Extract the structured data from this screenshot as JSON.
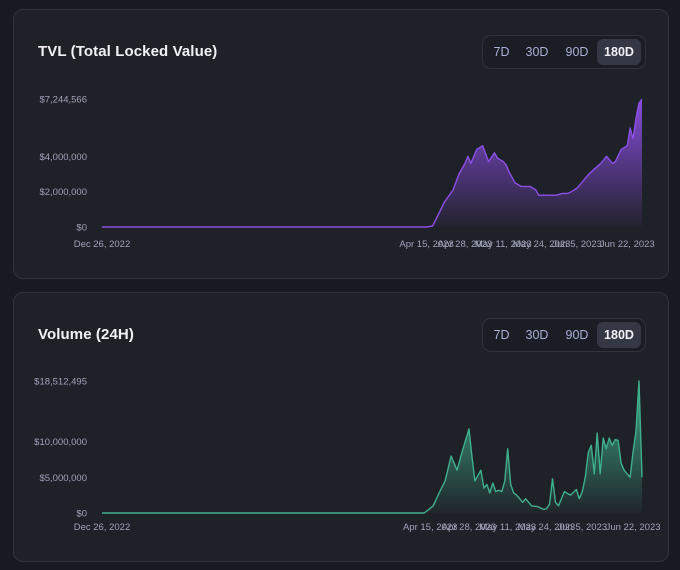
{
  "colors": {
    "tvl": "#8c4fe6",
    "volume": "#3fb08d",
    "active_range_bg": "#343744"
  },
  "chart_data": [
    {
      "id": "tvl",
      "type": "area",
      "title": "TVL (Total Locked Value)",
      "ranges": [
        "7D",
        "30D",
        "90D",
        "180D"
      ],
      "active_range": "180D",
      "ylim": [
        0,
        7244566
      ],
      "ytick_labels": [
        "$7,244,566",
        "$4,000,000",
        "$2,000,000",
        "$0"
      ],
      "ytick_values": [
        7244566,
        4000000,
        2000000,
        0
      ],
      "xtick_labels": [
        "Dec 26, 2022",
        "Apr 15, 2023",
        "Apr 28, 2023",
        "May 11, 2023",
        "May 24, 2023",
        "Jun 5, 2023",
        "Jun 22, 2023"
      ],
      "xtick_days": [
        0,
        110,
        123,
        136,
        149,
        161,
        178
      ],
      "x_days": [
        0,
        95,
        110,
        112,
        114,
        116,
        119,
        121,
        123,
        124,
        125,
        127,
        129,
        131,
        133,
        134,
        136,
        137,
        138,
        140,
        142,
        145,
        147,
        148,
        151,
        154,
        156,
        158,
        159,
        161,
        163,
        165,
        167,
        169,
        171,
        173,
        174,
        176,
        178,
        179,
        180,
        181,
        182,
        183
      ],
      "values": [
        0,
        0,
        0,
        50000,
        700000,
        1400000,
        2100000,
        3000000,
        3600000,
        4000000,
        3600000,
        4400000,
        4600000,
        3700000,
        4200000,
        3900000,
        3700000,
        3500000,
        3100000,
        2500000,
        2300000,
        2300000,
        2100000,
        1800000,
        1800000,
        1800000,
        1900000,
        1900000,
        2000000,
        2200000,
        2600000,
        3000000,
        3300000,
        3600000,
        4000000,
        3600000,
        3700000,
        4400000,
        4600000,
        5600000,
        5000000,
        6200000,
        7000000,
        7244566
      ]
    },
    {
      "id": "volume",
      "type": "area",
      "title": "Volume (24H)",
      "ranges": [
        "7D",
        "30D",
        "90D",
        "180D"
      ],
      "active_range": "180D",
      "ylim": [
        0,
        18512495
      ],
      "ytick_labels": [
        "$18,512,495",
        "$10,000,000",
        "$5,000,000",
        "$0"
      ],
      "ytick_values": [
        18512495,
        10000000,
        5000000,
        0
      ],
      "xtick_labels": [
        "Dec 26, 2022",
        "Apr 15, 2023",
        "Apr 28, 2023",
        "May 11, 2023",
        "May 24, 2023",
        "Jun 5, 2023",
        "Jun 22, 2023"
      ],
      "xtick_days": [
        0,
        110,
        123,
        136,
        149,
        161,
        178
      ],
      "x_days": [
        0,
        100,
        108,
        111,
        113,
        115,
        117,
        119,
        121,
        123,
        124,
        125,
        127,
        128,
        129,
        130,
        131,
        132,
        133,
        134,
        135,
        136,
        137,
        138,
        139,
        141,
        142,
        144,
        146,
        148,
        149,
        150,
        151,
        152,
        153,
        154,
        155,
        157,
        159,
        160,
        161,
        162,
        163,
        164,
        165,
        166,
        167,
        168,
        169,
        170,
        171,
        172,
        173,
        174,
        175,
        177,
        178,
        179,
        180,
        181
      ],
      "values": [
        0,
        0,
        0,
        1000000,
        2800000,
        4500000,
        8000000,
        6000000,
        9000000,
        11800000,
        8000000,
        4500000,
        6000000,
        3500000,
        4000000,
        2800000,
        4200000,
        3000000,
        3200000,
        3000000,
        4500000,
        9000000,
        4000000,
        2800000,
        2500000,
        1500000,
        2000000,
        1000000,
        900000,
        500000,
        600000,
        1200000,
        4800000,
        1500000,
        1000000,
        2000000,
        3000000,
        2500000,
        3300000,
        2000000,
        3000000,
        5000000,
        8500000,
        9500000,
        5500000,
        11200000,
        5500000,
        10500000,
        9000000,
        10500000,
        9500000,
        10300000,
        10200000,
        7000000,
        6000000,
        5000000,
        8500000,
        11500000,
        18512495,
        5000000
      ]
    }
  ]
}
